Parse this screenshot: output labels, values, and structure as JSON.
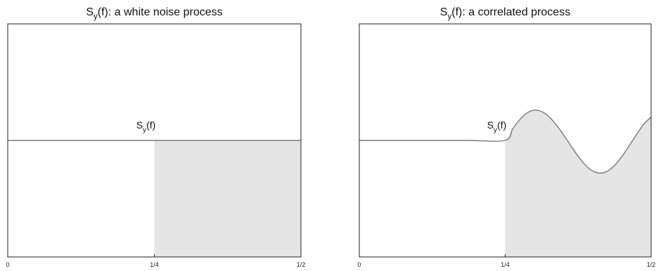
{
  "chart_data": [
    {
      "type": "area",
      "title": {
        "main": "S",
        "sub": "y",
        "rest": "(f): a white noise process"
      },
      "curve_label": {
        "main": "S",
        "sub": "y",
        "rest": "(f)"
      },
      "x_ticks": [
        "0",
        "1/4",
        "1/2"
      ],
      "xlim": [
        0,
        0.5
      ],
      "ylim": [
        0,
        1
      ],
      "x": [
        0,
        0.0625,
        0.125,
        0.1875,
        0.25,
        0.3125,
        0.375,
        0.4375,
        0.5
      ],
      "y": [
        0.5,
        0.5,
        0.5,
        0.5,
        0.5,
        0.5,
        0.5,
        0.5,
        0.5
      ],
      "shaded_range": [
        0.25,
        0.5
      ],
      "grid": false
    },
    {
      "type": "area",
      "title": {
        "main": "S",
        "sub": "y",
        "rest": "(f): a correlated process"
      },
      "curve_label": {
        "main": "S",
        "sub": "y",
        "rest": "(f)"
      },
      "x_ticks": [
        "0",
        "1/4",
        "1/2"
      ],
      "xlim": [
        0,
        0.5
      ],
      "ylim": [
        0,
        1
      ],
      "x": [
        0,
        0.0625,
        0.125,
        0.1875,
        0.25,
        0.2625,
        0.275,
        0.2875,
        0.3,
        0.3125,
        0.325,
        0.3375,
        0.35,
        0.3625,
        0.375,
        0.3875,
        0.4,
        0.4125,
        0.425,
        0.4375,
        0.45,
        0.4625,
        0.475,
        0.4875,
        0.5
      ],
      "y": [
        0.5,
        0.5,
        0.5,
        0.5,
        0.5,
        0.548,
        0.589,
        0.618,
        0.63,
        0.624,
        0.602,
        0.567,
        0.524,
        0.477,
        0.432,
        0.394,
        0.369,
        0.36,
        0.368,
        0.393,
        0.431,
        0.477,
        0.525,
        0.57,
        0.6
      ],
      "shaded_range": [
        0.25,
        0.5
      ],
      "grid": false
    }
  ],
  "colors": {
    "axis": "#222222",
    "curve": "#7a7a7a",
    "shade": "#e5e5e5"
  }
}
